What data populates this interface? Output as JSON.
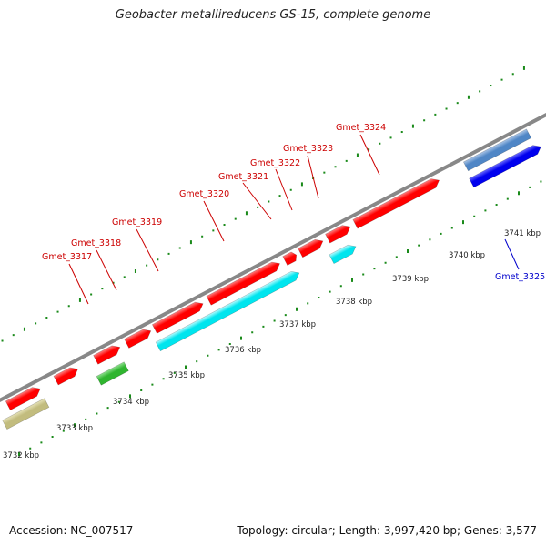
{
  "title": "Geobacter metallireducens GS-15, complete genome",
  "footer": {
    "accession": "Accession: NC_007517",
    "summary": "Topology: circular; Length: 3,997,420 bp; Genes: 3,577"
  },
  "colors": {
    "forward_cds": "#ff0000",
    "forward_rna": "#00e5ee",
    "reverse_cds": "#0000ee",
    "reverse_rna": "#4f86c6",
    "other_gene": "#2fb52f",
    "unknown_gene": "#c2bc7e",
    "label_forward": "#cc0000",
    "label_reverse": "#0000cc",
    "backbone": "#888888",
    "ticks": "#1a8a1a"
  },
  "axis": {
    "unit": "kbp",
    "labels": [
      "3732 kbp",
      "3733 kbp",
      "3734 kbp",
      "3735 kbp",
      "3736 kbp",
      "3737 kbp",
      "3738 kbp",
      "3739 kbp",
      "3740 kbp",
      "3741 kbp"
    ]
  },
  "gene_labels": [
    {
      "text": "Gmet_3317",
      "strand": "forward"
    },
    {
      "text": "Gmet_3318",
      "strand": "forward"
    },
    {
      "text": "Gmet_3319",
      "strand": "forward"
    },
    {
      "text": "Gmet_3320",
      "strand": "forward"
    },
    {
      "text": "Gmet_3321",
      "strand": "forward"
    },
    {
      "text": "Gmet_3322",
      "strand": "forward"
    },
    {
      "text": "Gmet_3323",
      "strand": "forward"
    },
    {
      "text": "Gmet_3324",
      "strand": "forward"
    },
    {
      "text": "Gmet_3325",
      "strand": "reverse"
    }
  ]
}
